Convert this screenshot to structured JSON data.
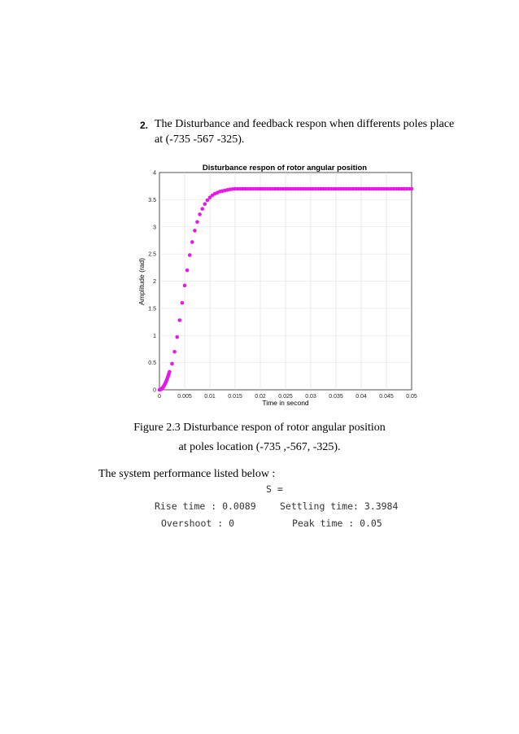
{
  "section": {
    "number": "2.",
    "line1": "The Disturbance and feedback respon when differents poles place",
    "line2": "at (-735 -567 -325)."
  },
  "chart_data": {
    "type": "scatter",
    "title": "Disturbance respon of rotor angular position",
    "xlabel": "Time in second",
    "ylabel": "Amplitude (rad)",
    "xlim": [
      0,
      0.05
    ],
    "ylim": [
      0,
      4
    ],
    "xticks": [
      0,
      0.005,
      0.01,
      0.015,
      0.02,
      0.025,
      0.03,
      0.035,
      0.04,
      0.045,
      0.05
    ],
    "xtick_labels": [
      "0",
      "0.005",
      "0.01",
      "0.015",
      "0.02",
      "0.025",
      "0.03",
      "0.035",
      "0.04",
      "0.045",
      "0.05"
    ],
    "yticks": [
      0,
      0.5,
      1,
      1.5,
      2,
      2.5,
      3,
      3.5,
      4
    ],
    "ytick_labels": [
      "0",
      "0.5",
      "1",
      "1.5",
      "2",
      "2.5",
      "3",
      "3.5",
      "4"
    ],
    "grid": true,
    "marker_color": "#e619e6",
    "series": [
      {
        "x": [
          0,
          0.0001,
          0.0002,
          0.0003,
          0.0004,
          0.0005,
          0.0006,
          0.0007,
          0.0008,
          0.0009,
          0.001,
          0.0011,
          0.0012,
          0.0013,
          0.0014,
          0.0015,
          0.0016,
          0.0017,
          0.0018,
          0.0019,
          0.002,
          0.0025,
          0.003,
          0.0035,
          0.004,
          0.0045,
          0.005,
          0.0055,
          0.006,
          0.0065,
          0.007,
          0.0075,
          0.008,
          0.0085,
          0.009,
          0.0095,
          0.01,
          0.0105,
          0.011,
          0.0115,
          0.012,
          0.0125,
          0.013,
          0.0135,
          0.014,
          0.0145,
          0.015,
          0.0155,
          0.016,
          0.0165,
          0.017,
          0.0175,
          0.018,
          0.0185,
          0.019,
          0.0195,
          0.02,
          0.0205,
          0.021,
          0.0215,
          0.022,
          0.0225,
          0.023,
          0.0235,
          0.024,
          0.0245,
          0.025,
          0.0255,
          0.026,
          0.0265,
          0.027,
          0.0275,
          0.028,
          0.0285,
          0.029,
          0.0295,
          0.03,
          0.0305,
          0.031,
          0.0315,
          0.032,
          0.0325,
          0.033,
          0.0335,
          0.034,
          0.0345,
          0.035,
          0.0355,
          0.036,
          0.0365,
          0.037,
          0.0375,
          0.038,
          0.0385,
          0.039,
          0.0395,
          0.04,
          0.0405,
          0.041,
          0.0415,
          0.042,
          0.0425,
          0.043,
          0.0435,
          0.044,
          0.0445,
          0.045,
          0.0455,
          0.046,
          0.0465,
          0.047,
          0.0475,
          0.048,
          0.0485,
          0.049,
          0.0495,
          0.05
        ],
        "y": [
          0,
          0.001,
          0.004,
          0.009,
          0.015,
          0.023,
          0.033,
          0.045,
          0.058,
          0.073,
          0.09,
          0.108,
          0.128,
          0.149,
          0.171,
          0.195,
          0.22,
          0.246,
          0.273,
          0.301,
          0.33,
          0.48,
          0.7,
          0.97,
          1.28,
          1.6,
          1.92,
          2.2,
          2.48,
          2.72,
          2.93,
          3.09,
          3.23,
          3.33,
          3.42,
          3.49,
          3.54,
          3.58,
          3.61,
          3.63,
          3.65,
          3.66,
          3.67,
          3.68,
          3.69,
          3.695,
          3.7,
          3.7,
          3.7,
          3.7,
          3.7,
          3.7,
          3.7,
          3.7,
          3.7,
          3.7,
          3.7,
          3.7,
          3.7,
          3.7,
          3.7,
          3.7,
          3.7,
          3.7,
          3.7,
          3.7,
          3.7,
          3.7,
          3.7,
          3.7,
          3.7,
          3.7,
          3.7,
          3.7,
          3.7,
          3.7,
          3.7,
          3.7,
          3.7,
          3.7,
          3.7,
          3.7,
          3.7,
          3.7,
          3.7,
          3.7,
          3.7,
          3.7,
          3.7,
          3.7,
          3.7,
          3.7,
          3.7,
          3.7,
          3.7,
          3.7,
          3.7,
          3.7,
          3.7,
          3.7,
          3.7,
          3.7,
          3.7,
          3.7,
          3.7,
          3.7,
          3.7,
          3.7,
          3.7,
          3.7,
          3.7,
          3.7,
          3.7,
          3.7,
          3.7,
          3.7,
          3.7
        ]
      }
    ]
  },
  "caption": {
    "line1": "Figure 2.3 Disturbance respon of rotor angular position",
    "line2": "at poles location (-735 ,-567, -325)."
  },
  "performance": {
    "intro": "The system performance listed below :",
    "s_label": "S =",
    "rise_time": "Rise time : 0.0089",
    "settling_time": "Settling time: 3.3984",
    "overshoot": "Overshoot : 0",
    "peak_time": "Peak time : 0.05"
  }
}
